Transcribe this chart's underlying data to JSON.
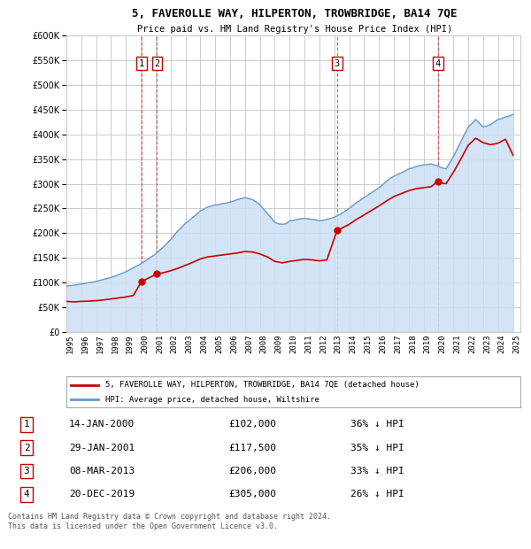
{
  "title": "5, FAVEROLLE WAY, HILPERTON, TROWBRIDGE, BA14 7QE",
  "subtitle": "Price paid vs. HM Land Registry's House Price Index (HPI)",
  "legend1": "5, FAVEROLLE WAY, HILPERTON, TROWBRIDGE, BA14 7QE (detached house)",
  "legend2": "HPI: Average price, detached house, Wiltshire",
  "footer": "Contains HM Land Registry data © Crown copyright and database right 2024.\nThis data is licensed under the Open Government Licence v3.0.",
  "sales": [
    {
      "num": 1,
      "year": 2000.04,
      "price": 102000
    },
    {
      "num": 2,
      "year": 2001.08,
      "price": 117500
    },
    {
      "num": 3,
      "year": 2013.19,
      "price": 206000
    },
    {
      "num": 4,
      "year": 2019.97,
      "price": 305000
    }
  ],
  "hpi_x": [
    1995,
    1995.25,
    1995.5,
    1995.75,
    1996,
    1996.25,
    1996.5,
    1996.75,
    1997,
    1997.25,
    1997.5,
    1997.75,
    1998,
    1998.25,
    1998.5,
    1998.75,
    1999,
    1999.25,
    1999.5,
    1999.75,
    2000,
    2000.25,
    2000.5,
    2000.75,
    2001,
    2001.25,
    2001.5,
    2001.75,
    2002,
    2002.25,
    2002.5,
    2002.75,
    2003,
    2003.25,
    2003.5,
    2003.75,
    2004,
    2004.25,
    2004.5,
    2004.75,
    2005,
    2005.25,
    2005.5,
    2005.75,
    2006,
    2006.25,
    2006.5,
    2006.75,
    2007,
    2007.25,
    2007.5,
    2007.75,
    2008,
    2008.25,
    2008.5,
    2008.75,
    2009,
    2009.25,
    2009.5,
    2009.75,
    2010,
    2010.25,
    2010.5,
    2010.75,
    2011,
    2011.25,
    2011.5,
    2011.75,
    2012,
    2012.25,
    2012.5,
    2012.75,
    2013,
    2013.25,
    2013.5,
    2013.75,
    2014,
    2014.25,
    2014.5,
    2014.75,
    2015,
    2015.25,
    2015.5,
    2015.75,
    2016,
    2016.25,
    2016.5,
    2016.75,
    2017,
    2017.25,
    2017.5,
    2017.75,
    2018,
    2018.25,
    2018.5,
    2018.75,
    2019,
    2019.25,
    2019.5,
    2019.75,
    2020,
    2020.25,
    2020.5,
    2020.75,
    2021,
    2021.25,
    2021.5,
    2021.75,
    2022,
    2022.25,
    2022.5,
    2022.75,
    2023,
    2023.25,
    2023.5,
    2023.75,
    2024,
    2024.25,
    2024.5,
    2024.75,
    2025
  ],
  "hpi_y": [
    93000,
    94000,
    95000,
    96000,
    97000,
    98500,
    100000,
    101000,
    102500,
    104500,
    106500,
    108500,
    110500,
    113000,
    116000,
    119000,
    122000,
    126000,
    130000,
    134000,
    138000,
    143000,
    148000,
    153000,
    158000,
    165000,
    172000,
    179000,
    187000,
    196000,
    205000,
    212000,
    220000,
    226000,
    232000,
    238000,
    245000,
    249000,
    253000,
    255000,
    257000,
    258000,
    260000,
    261000,
    263000,
    265000,
    268000,
    270000,
    272000,
    270000,
    268000,
    263000,
    258000,
    248000,
    240000,
    231000,
    222000,
    219000,
    218000,
    219000,
    225000,
    226000,
    228000,
    229000,
    230000,
    229000,
    228000,
    227000,
    225000,
    226000,
    228000,
    230000,
    232000,
    236000,
    240000,
    245000,
    250000,
    256000,
    262000,
    267000,
    272000,
    277000,
    282000,
    287000,
    292000,
    298000,
    305000,
    311000,
    315000,
    319000,
    322000,
    326000,
    330000,
    332000,
    335000,
    337000,
    338000,
    339000,
    340000,
    338000,
    335000,
    332000,
    330000,
    342000,
    355000,
    370000,
    385000,
    400000,
    415000,
    422000,
    430000,
    422000,
    415000,
    417000,
    420000,
    425000,
    430000,
    432000,
    435000,
    437000,
    440000
  ],
  "red_x": [
    1995,
    1995.5,
    1996,
    1996.5,
    1997,
    1997.5,
    1998,
    1998.5,
    1999,
    1999.5,
    2000.04,
    2001.08,
    2001.5,
    2002,
    2002.5,
    2003,
    2003.5,
    2004,
    2004.5,
    2005,
    2005.5,
    2006,
    2006.5,
    2007,
    2007.5,
    2008,
    2008.5,
    2009,
    2009.5,
    2010,
    2010.5,
    2011,
    2011.5,
    2012,
    2012.5,
    2013.19,
    2013.5,
    2014,
    2014.5,
    2015,
    2015.5,
    2016,
    2016.5,
    2017,
    2017.5,
    2018,
    2018.5,
    2019,
    2019.5,
    2019.97,
    2020,
    2020.5,
    2021,
    2021.5,
    2022,
    2022.5,
    2023,
    2023.5,
    2024,
    2024.5,
    2025
  ],
  "red_y": [
    62000,
    61000,
    62000,
    62500,
    63500,
    65000,
    67000,
    69000,
    71000,
    74000,
    102000,
    117500,
    120000,
    124000,
    129000,
    135000,
    141000,
    148000,
    152000,
    154000,
    156000,
    158000,
    160000,
    163000,
    162000,
    158000,
    152000,
    143000,
    140000,
    143000,
    145000,
    147000,
    146000,
    144000,
    146000,
    206000,
    210000,
    218000,
    228000,
    237000,
    246000,
    255000,
    265000,
    274000,
    280000,
    286000,
    290000,
    292000,
    294000,
    305000,
    302000,
    300000,
    323000,
    350000,
    378000,
    392000,
    383000,
    379000,
    382000,
    390000,
    358000
  ],
  "sale_color": "#cc0000",
  "hpi_color": "#6699cc",
  "hpi_fill": "#cce0f5",
  "vline_color": "#cc0000",
  "ylim": [
    0,
    600000
  ],
  "xlim": [
    1995,
    2025.5
  ],
  "yticks": [
    0,
    50000,
    100000,
    150000,
    200000,
    250000,
    300000,
    350000,
    400000,
    450000,
    500000,
    550000,
    600000
  ],
  "xticks": [
    1995,
    1996,
    1997,
    1998,
    1999,
    2000,
    2001,
    2002,
    2003,
    2004,
    2005,
    2006,
    2007,
    2008,
    2009,
    2010,
    2011,
    2012,
    2013,
    2014,
    2015,
    2016,
    2017,
    2018,
    2019,
    2020,
    2021,
    2022,
    2023,
    2024,
    2025
  ],
  "bg_color": "#ffffff",
  "grid_color": "#cccccc",
  "table_rows": [
    [
      "1",
      "14-JAN-2000",
      "£102,000",
      "36% ↓ HPI"
    ],
    [
      "2",
      "29-JAN-2001",
      "£117,500",
      "35% ↓ HPI"
    ],
    [
      "3",
      "08-MAR-2013",
      "£206,000",
      "33% ↓ HPI"
    ],
    [
      "4",
      "20-DEC-2019",
      "£305,000",
      "26% ↓ HPI"
    ]
  ]
}
